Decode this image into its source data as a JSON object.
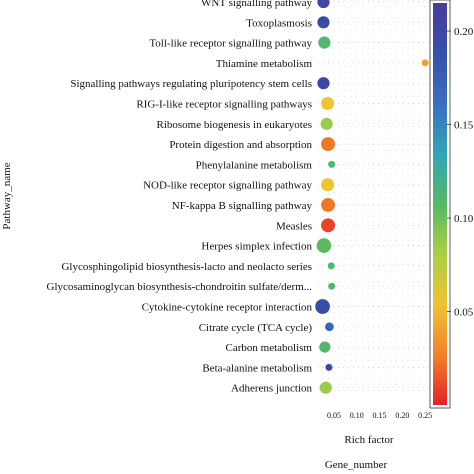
{
  "chart_data": {
    "type": "scatter",
    "xlabel": "Rich factor",
    "ylabel": "Pathway_name",
    "size_legend_title": "Gene_number",
    "xlim": [
      0.015,
      0.265
    ],
    "x_ticks": [
      0.05,
      0.1,
      0.15,
      0.2,
      0.25
    ],
    "x_tick_labels": [
      "0.05",
      "0.10",
      "0.15",
      "0.20",
      "0.25"
    ],
    "grid": true,
    "colorbar": {
      "ticks": [
        0.05,
        0.1,
        0.15,
        0.2
      ],
      "tick_labels": [
        "0.05",
        "0.10",
        "0.15",
        "0.20"
      ],
      "range": [
        0.0,
        0.215
      ],
      "colors": [
        "#e8202a",
        "#f07f27",
        "#f2c233",
        "#a8cf45",
        "#54b964",
        "#31a7b5",
        "#3b6ec3",
        "#3550a7",
        "#4b3aa0"
      ],
      "placement": "right"
    },
    "pathways": [
      "WNT signalling pathway",
      "Toxoplasmosis",
      "Toll-like receptor signalling pathway",
      "Thiamine metabolism",
      "Signalling pathways regulating pluripotency stem cells",
      "RIG-I-like receptor signalling pathways",
      "Ribosome biogenesis in eukaryotes",
      "Protein digestion and absorption",
      "Phenylalanine metabolism",
      "NOD-like receptor signalling pathway",
      "NF-kappa B signalling pathway",
      "Measles",
      "Herpes simplex infection",
      "Glycosphingolipid biosynthesis-lacto and neolacto series",
      "Glycosaminoglycan biosynthesis-chondroitin sulfate/derm...",
      "Cytokine-cytokine receptor interaction",
      "Citrate cycle (TCA cycle)",
      "Carbon metabolism",
      "Beta-alanine metabolism",
      "Adherens junction"
    ],
    "points": [
      {
        "pathway": "WNT signalling pathway",
        "rich_factor": 0.027,
        "gene_number": 5,
        "pvalue": 0.2
      },
      {
        "pathway": "Toxoplasmosis",
        "rich_factor": 0.027,
        "gene_number": 5,
        "pvalue": 0.195
      },
      {
        "pathway": "Toll-like receptor signalling pathway",
        "rich_factor": 0.029,
        "gene_number": 5,
        "pvalue": 0.11
      },
      {
        "pathway": "Thiamine metabolism",
        "rich_factor": 0.25,
        "gene_number": 1,
        "pvalue": 0.04
      },
      {
        "pathway": "Signalling pathways regulating pluripotency stem cells",
        "rich_factor": 0.027,
        "gene_number": 5,
        "pvalue": 0.2
      },
      {
        "pathway": "RIG-I-like receptor signalling pathways",
        "rich_factor": 0.036,
        "gene_number": 6,
        "pvalue": 0.055
      },
      {
        "pathway": "Ribosome biogenesis in eukaryotes",
        "rich_factor": 0.034,
        "gene_number": 5,
        "pvalue": 0.085
      },
      {
        "pathway": "Protein digestion and absorption",
        "rich_factor": 0.037,
        "gene_number": 7,
        "pvalue": 0.025
      },
      {
        "pathway": "Phenylalanine metabolism",
        "rich_factor": 0.045,
        "gene_number": 1,
        "pvalue": 0.11
      },
      {
        "pathway": "NOD-like receptor signalling pathway",
        "rich_factor": 0.036,
        "gene_number": 6,
        "pvalue": 0.055
      },
      {
        "pathway": "NF-kappa B signalling pathway",
        "rich_factor": 0.037,
        "gene_number": 7,
        "pvalue": 0.025
      },
      {
        "pathway": "Measles",
        "rich_factor": 0.037,
        "gene_number": 7,
        "pvalue": 0.01
      },
      {
        "pathway": "Herpes simplex infection",
        "rich_factor": 0.028,
        "gene_number": 8,
        "pvalue": 0.105
      },
      {
        "pathway": "Glycosphingolipid biosynthesis-lacto and neolacto series",
        "rich_factor": 0.044,
        "gene_number": 1,
        "pvalue": 0.11
      },
      {
        "pathway": "Glycosaminoglycan biosynthesis-chondroitin sulfate/derm...",
        "rich_factor": 0.045,
        "gene_number": 1,
        "pvalue": 0.11
      },
      {
        "pathway": "Cytokine-cytokine receptor interaction",
        "rich_factor": 0.025,
        "gene_number": 8,
        "pvalue": 0.19
      },
      {
        "pathway": "Citrate cycle (TCA cycle)",
        "rich_factor": 0.04,
        "gene_number": 2,
        "pvalue": 0.17
      },
      {
        "pathway": "Carbon metabolism",
        "rich_factor": 0.03,
        "gene_number": 4,
        "pvalue": 0.11
      },
      {
        "pathway": "Beta-alanine metabolism",
        "rich_factor": 0.039,
        "gene_number": 1,
        "pvalue": 0.2
      },
      {
        "pathway": "Adherens junction",
        "rich_factor": 0.032,
        "gene_number": 5,
        "pvalue": 0.085
      }
    ]
  }
}
